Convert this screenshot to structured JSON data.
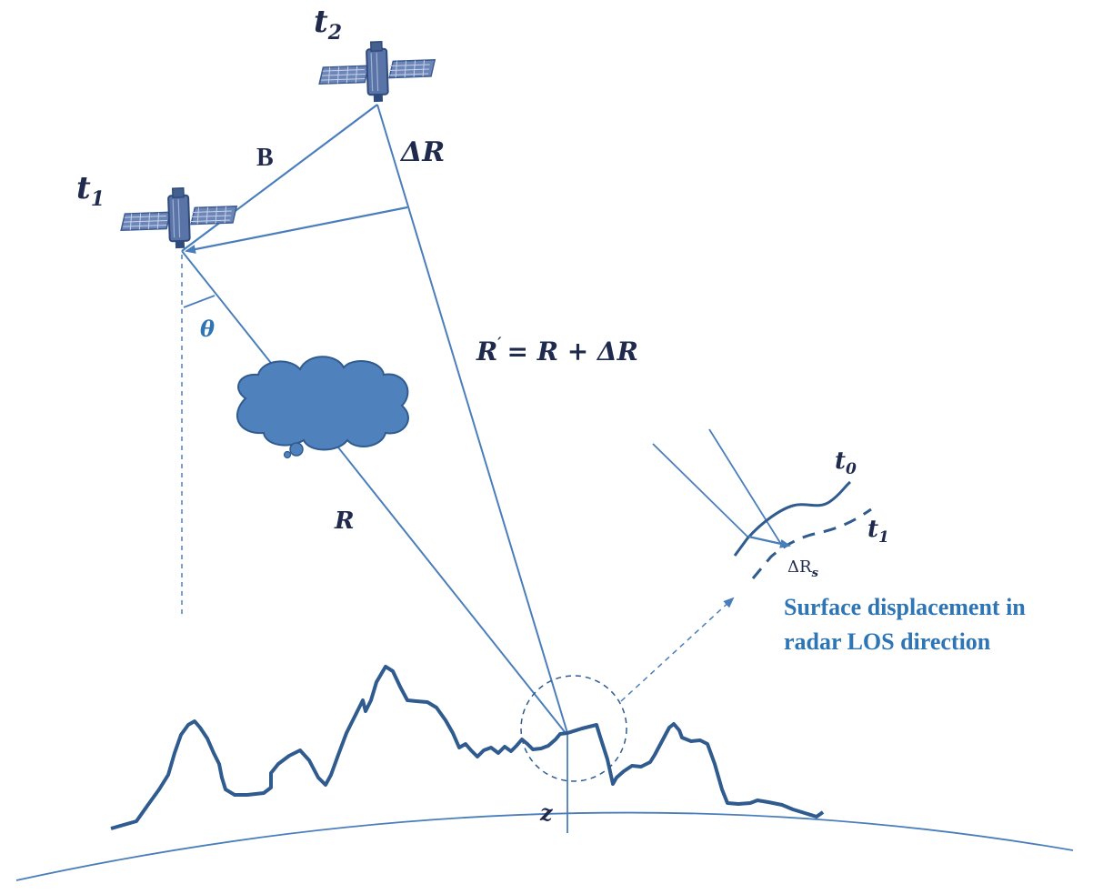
{
  "labels": {
    "t2": "t",
    "t2_sub": "2",
    "t1": "t",
    "t1_sub": "1",
    "baseline": "B",
    "delta_r": "ΔR",
    "theta": "θ",
    "r_prime": "R",
    "r_prime_mark": "′",
    "r_prime_rhs": "= R + ΔR",
    "r": "R",
    "z": "z",
    "t0_inset": "t",
    "t0_inset_sub": "0",
    "t1_inset": "t",
    "t1_inset_sub": "1",
    "delta_rs": "ΔR",
    "delta_rs_sub": "s"
  },
  "caption": {
    "line1": "Surface displacement in",
    "line2": "radar LOS direction"
  },
  "colors": {
    "line": "#4a7ebb",
    "terrain": "#2f5b8f",
    "cloud": "#4f81bd",
    "label_dark": "#1f2a4d",
    "label_blue": "#2e75b6"
  }
}
